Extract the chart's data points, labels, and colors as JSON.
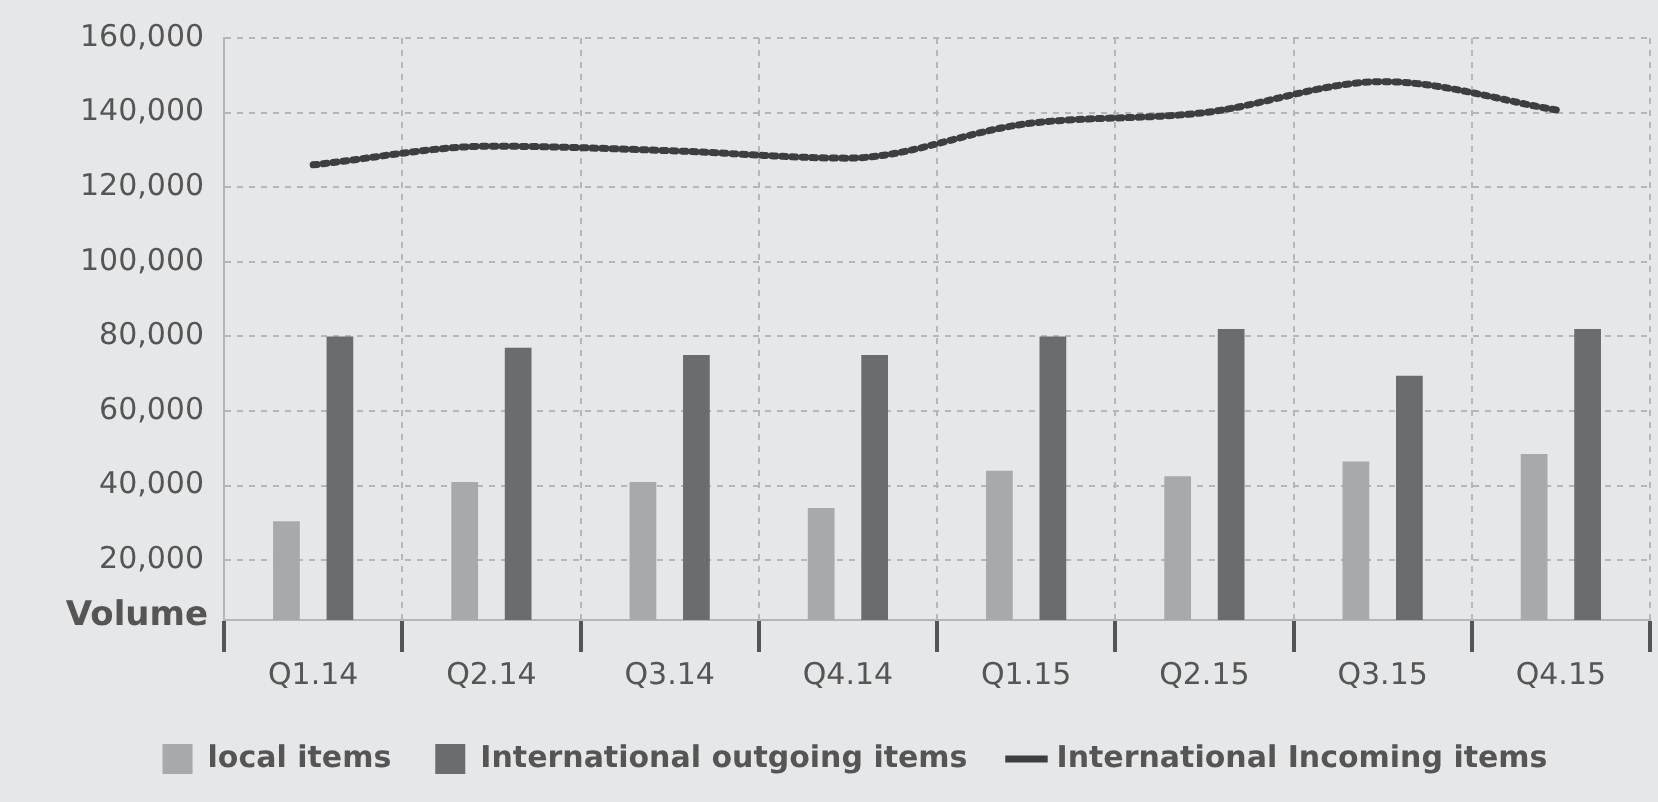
{
  "chart_data": {
    "type": "bar",
    "ylabel": "Volume",
    "categories": [
      "Q1.14",
      "Q2.14",
      "Q3.14",
      "Q4.14",
      "Q1.15",
      "Q2.15",
      "Q3.15",
      "Q4.15"
    ],
    "series": [
      {
        "name": "local items",
        "color": "#a8a9aa",
        "values": [
          30500,
          41000,
          41000,
          34000,
          44000,
          42500,
          46500,
          48500
        ]
      },
      {
        "name": "International outgoing items",
        "color": "#6b6c6f",
        "values": [
          80000,
          77000,
          75000,
          75000,
          80000,
          82000,
          69500,
          82000
        ]
      },
      {
        "name": "International Incoming items",
        "type": "line",
        "color": "#3d3e40",
        "line_style": "dotted",
        "values": [
          126000,
          131000,
          129800,
          127800,
          137000,
          140000,
          148300,
          140500
        ]
      }
    ],
    "ylim": [
      4000,
      160000
    ],
    "yticks": [
      {
        "value": 20000,
        "label": "20,000"
      },
      {
        "value": 40000,
        "label": "40,000"
      },
      {
        "value": 60000,
        "label": "60,000"
      },
      {
        "value": 80000,
        "label": "80,000"
      },
      {
        "value": 100000,
        "label": "100,000"
      },
      {
        "value": 120000,
        "label": "120,000"
      },
      {
        "value": 140000,
        "label": "140,000"
      },
      {
        "value": 160000,
        "label": "160,000"
      }
    ],
    "grid": true,
    "legend": "bottom"
  }
}
